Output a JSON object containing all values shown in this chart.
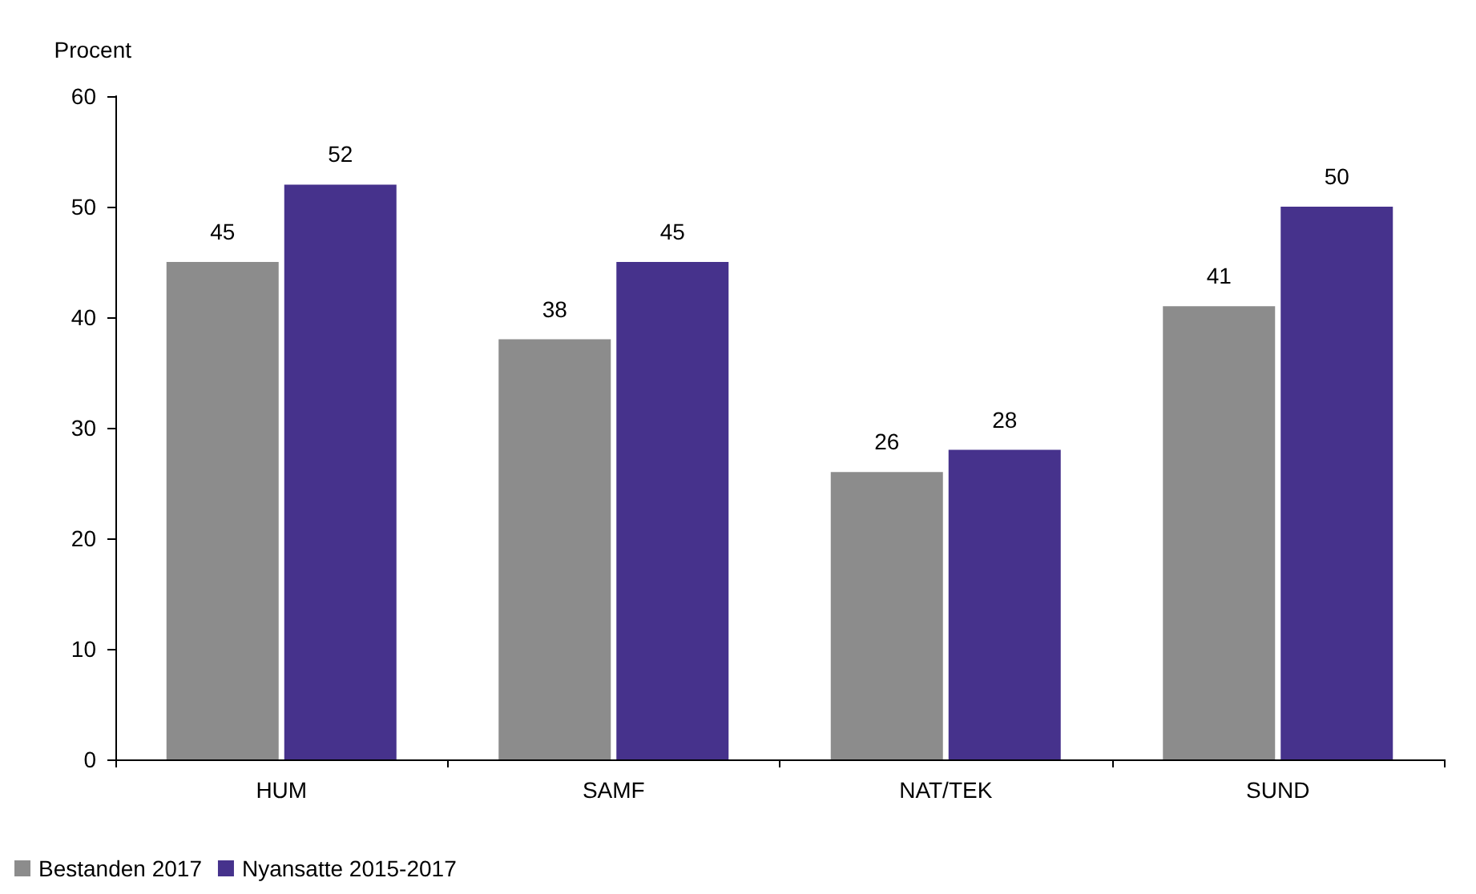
{
  "chart_data": {
    "type": "bar",
    "ylabel": "Procent",
    "categories": [
      "HUM",
      "SAMF",
      "NAT/TEK",
      "SUND"
    ],
    "series": [
      {
        "name": "Bestanden 2017",
        "color": "#8c8c8c",
        "values": [
          45,
          38,
          26,
          41
        ]
      },
      {
        "name": "Nyansatte 2015-2017",
        "color": "#46328c",
        "values": [
          52,
          45,
          28,
          50
        ]
      }
    ],
    "ylim": [
      0,
      60
    ],
    "yticks": [
      0,
      10,
      20,
      30,
      40,
      50,
      60
    ],
    "data_labels": true,
    "grid": false,
    "legend": "bottom left"
  }
}
